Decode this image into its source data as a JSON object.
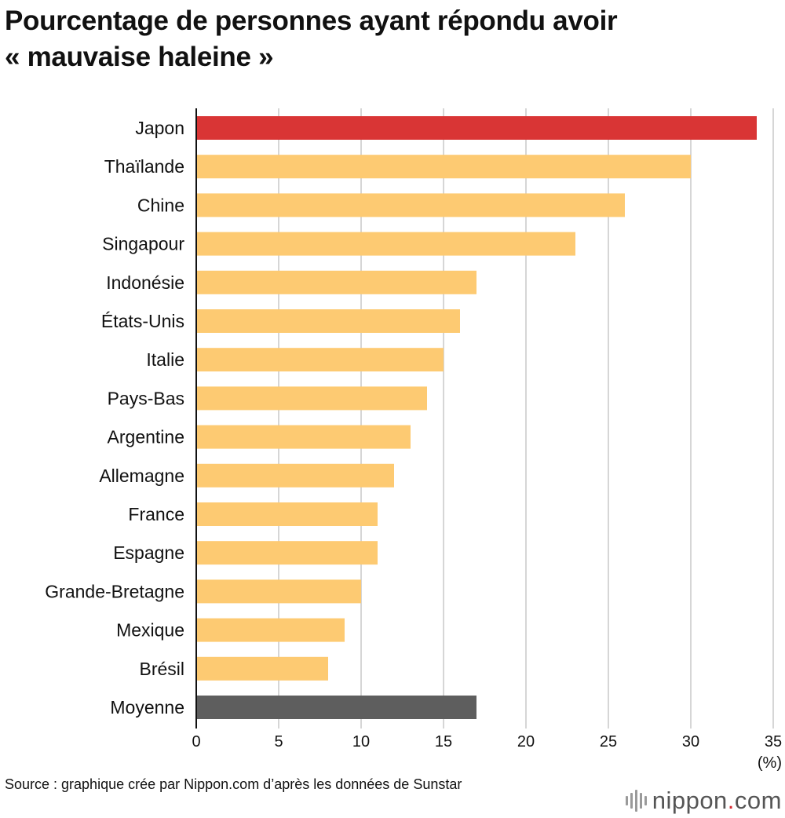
{
  "header": {
    "title_line1": "Pourcentage de personnes ayant répondu avoir",
    "title_line2": "« mauvaise haleine »"
  },
  "chart_data": {
    "type": "bar",
    "orientation": "horizontal",
    "categories": [
      "Japon",
      "Thaïlande",
      "Chine",
      "Singapour",
      "Indonésie",
      "États-Unis",
      "Italie",
      "Pays-Bas",
      "Argentine",
      "Allemagne",
      "France",
      "Espagne",
      "Grande-Bretagne",
      "Mexique",
      "Brésil",
      "Moyenne"
    ],
    "values": [
      34,
      30,
      26,
      23,
      17,
      16,
      15,
      14,
      13,
      12,
      11,
      11,
      10,
      9,
      8,
      17
    ],
    "bar_colors": [
      "#d93535",
      "#fdca72",
      "#fdca72",
      "#fdca72",
      "#fdca72",
      "#fdca72",
      "#fdca72",
      "#fdca72",
      "#fdca72",
      "#fdca72",
      "#fdca72",
      "#fdca72",
      "#fdca72",
      "#fdca72",
      "#fdca72",
      "#5e5e5e"
    ],
    "xlim": [
      0,
      35
    ],
    "xticks": [
      0,
      5,
      10,
      15,
      20,
      25,
      30,
      35
    ],
    "xunit": "(%)",
    "grid": true,
    "legend": "none"
  },
  "footer": {
    "source": "Source : graphique crée par Nippon.com d’après les données de Sunstar"
  },
  "logo": {
    "name": "nippon",
    "dot": ".",
    "suffix": "com"
  },
  "colors": {
    "grid": "#c8c8c8",
    "axis": "#111111",
    "logo_accent": "#d7282f"
  }
}
